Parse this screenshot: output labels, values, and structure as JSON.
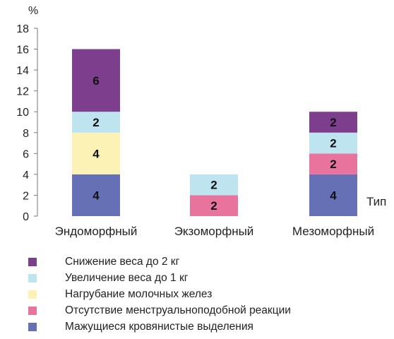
{
  "chart_data": {
    "type": "bar",
    "stacked": true,
    "categories": [
      "Эндоморфный",
      "Экзоморфный",
      "Мезоморфный"
    ],
    "series": [
      {
        "name": "Мажущиеся кровянистые выделения",
        "color": "#6670b4",
        "values": [
          4,
          0,
          4
        ]
      },
      {
        "name": "Отсутствие менструальноподобной реакции",
        "color": "#e8749e",
        "values": [
          0,
          2,
          2
        ]
      },
      {
        "name": "Нагрубание молочных желез",
        "color": "#fdf2b5",
        "values": [
          4,
          0,
          0
        ]
      },
      {
        "name": "Увеличение веса до 1 кг",
        "color": "#bde4ef",
        "values": [
          2,
          2,
          2
        ]
      },
      {
        "name": "Снижение веса до 2 кг",
        "color": "#7d3f8d",
        "values": [
          6,
          0,
          2
        ]
      }
    ],
    "y_unit": "%",
    "x_axis_label": "Тип",
    "ylim": [
      0,
      18
    ],
    "y_ticks": [
      "0",
      "2",
      "4",
      "6",
      "8",
      "10",
      "12",
      "14",
      "16",
      "18"
    ],
    "legend_position": "bottom-left",
    "grid": false
  }
}
